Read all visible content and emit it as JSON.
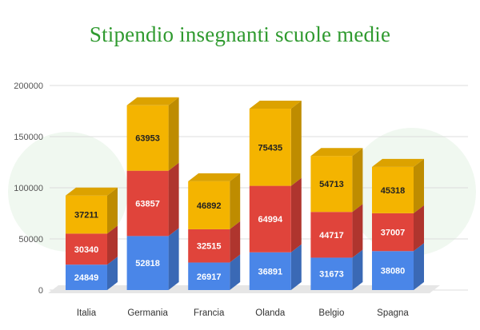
{
  "chart_data": {
    "type": "bar",
    "stacked": true,
    "style": "3d",
    "title": "Stipendio insegnanti scuole medie",
    "xlabel": "",
    "ylabel": "",
    "categories": [
      "Italia",
      "Germania",
      "Francia",
      "Olanda",
      "Belgio",
      "Spagna"
    ],
    "series": [
      {
        "color": "#4a86e8",
        "values": [
          24849,
          52818,
          26917,
          36891,
          31673,
          38080
        ]
      },
      {
        "color": "#e0443b",
        "values": [
          30340,
          63857,
          32515,
          64994,
          44717,
          37007
        ]
      },
      {
        "color": "#f4b400",
        "values": [
          37211,
          63953,
          46892,
          75435,
          54713,
          45318
        ]
      }
    ],
    "ylim": [
      0,
      200000
    ],
    "yticks": [
      0,
      50000,
      100000,
      150000,
      200000
    ],
    "grid": true,
    "legend": "none"
  },
  "colors": {
    "title": "#2f9a2f",
    "grid": "#dddddd",
    "label_on_dark": "#ffffff",
    "label_on_light": "#222222"
  }
}
